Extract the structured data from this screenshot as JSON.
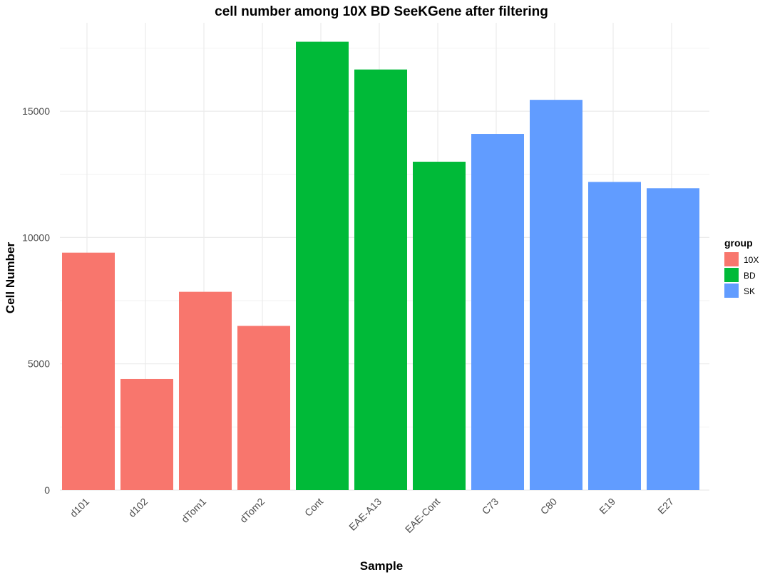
{
  "chart_data": {
    "type": "bar",
    "title": "cell number among 10X BD SeeKGene after filtering",
    "xlabel": "Sample",
    "ylabel": "Cell Number",
    "categories": [
      "d101",
      "d102",
      "dTom1",
      "dTom2",
      "Cont",
      "EAE-A13",
      "EAE-Cont",
      "C73",
      "C80",
      "E19",
      "E27"
    ],
    "values": [
      9400,
      4400,
      7850,
      6500,
      17750,
      16650,
      13000,
      14100,
      15450,
      12200,
      11950
    ],
    "groups": [
      "10X",
      "10X",
      "10X",
      "10X",
      "BD",
      "BD",
      "BD",
      "SK",
      "SK",
      "SK",
      "SK"
    ],
    "ylim": [
      0,
      18500
    ],
    "yticks": [
      0,
      5000,
      10000,
      15000
    ],
    "grid": true,
    "legend": {
      "title": "group",
      "position": "right",
      "items": [
        {
          "label": "10X",
          "color": "#F8766D"
        },
        {
          "label": "BD",
          "color": "#00BA38"
        },
        {
          "label": "SK",
          "color": "#619CFF"
        }
      ]
    }
  }
}
